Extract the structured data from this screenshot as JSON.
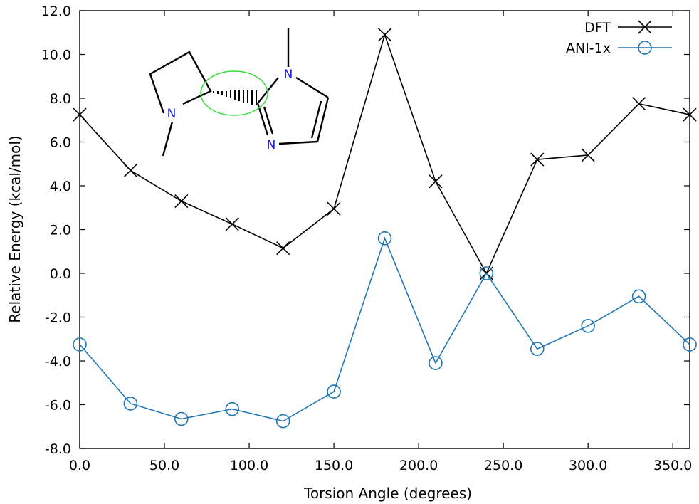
{
  "chart_data": {
    "type": "line",
    "xlabel": "Torsion Angle (degrees)",
    "ylabel": "Relative Energy (kcal/mol)",
    "xlim": [
      0,
      360
    ],
    "ylim": [
      -8,
      12
    ],
    "xticks": [
      "0.0",
      "50.0",
      "100.0",
      "150.0",
      "200.0",
      "250.0",
      "300.0",
      "350.0"
    ],
    "yticks": [
      "-8.0",
      "-6.0",
      "-4.0",
      "-2.0",
      "0.0",
      "2.0",
      "4.0",
      "6.0",
      "8.0",
      "10.0",
      "12.0"
    ],
    "grid": false,
    "legend_position": "top-right",
    "x": [
      0,
      30,
      60,
      90,
      120,
      150,
      180,
      210,
      240,
      270,
      300,
      330,
      360
    ],
    "series": [
      {
        "name": "DFT",
        "marker": "cross",
        "color": "#000000",
        "values": [
          7.25,
          4.7,
          3.3,
          2.25,
          1.15,
          2.95,
          10.9,
          4.2,
          0.0,
          5.2,
          5.4,
          7.75,
          7.25
        ]
      },
      {
        "name": "ANI-1x",
        "marker": "circle",
        "color": "#1f77b4",
        "values": [
          -3.25,
          -5.95,
          -6.65,
          -6.2,
          -6.75,
          -5.4,
          1.6,
          -4.1,
          0.0,
          -3.45,
          -2.4,
          -1.05,
          -3.25
        ]
      }
    ]
  },
  "molecule": {
    "atom_labels": [
      "N",
      "N",
      "N"
    ],
    "highlight_color": "#33dd33"
  }
}
